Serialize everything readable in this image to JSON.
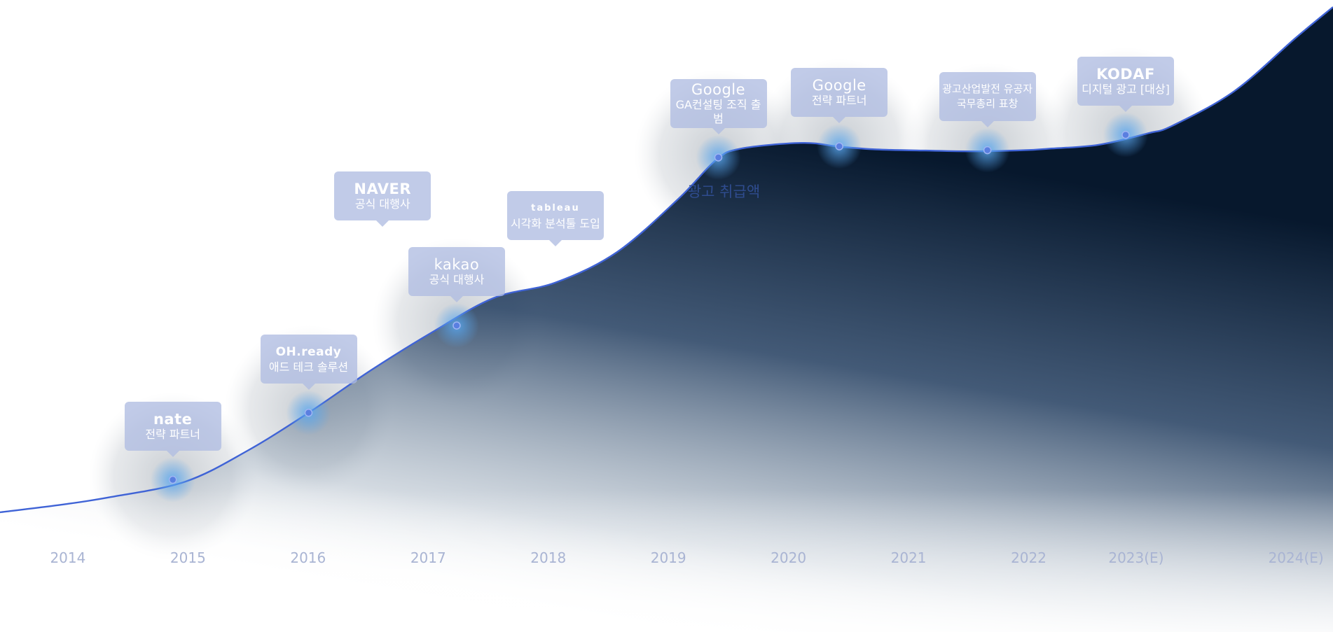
{
  "chart_data": {
    "type": "area",
    "title": "",
    "series": [
      {
        "name": "광고 취급액",
        "x": [
          2013.5,
          2014.0,
          2014.4,
          2015.0,
          2015.5,
          2016.0,
          2016.5,
          2017.0,
          2017.5,
          2018.0,
          2018.5,
          2019.0,
          2019.3,
          2019.5,
          2020.0,
          2020.3,
          2020.6,
          2021.0,
          2021.4,
          2021.8,
          2022.0,
          2022.4,
          2022.8,
          2023.0,
          2023.5,
          2024.0,
          2024.3
        ],
        "values": [
          0,
          2,
          4,
          8,
          16,
          26,
          37,
          47,
          56,
          60,
          68,
          82,
          92,
          95,
          96.5,
          95.5,
          94.8,
          94.5,
          94.3,
          94.6,
          95,
          96,
          99,
          101,
          110,
          124,
          132
        ]
      }
    ],
    "categories": [
      "2014",
      "2015",
      "2016",
      "2017",
      "2018",
      "2019",
      "2020",
      "2021",
      "2022",
      "2023(E)",
      "2024(E)"
    ],
    "xlim": [
      2013.5,
      2024.3
    ],
    "ylim": [
      0,
      132
    ],
    "grid": false,
    "legend": "none",
    "milestones": [
      {
        "x": 2014.9,
        "value": 8.5,
        "logo": "nate",
        "label": "전략 파트너"
      },
      {
        "x": 2016.0,
        "value": 26,
        "logo": "OH.ready",
        "label": "애드 테크 솔루션"
      },
      {
        "x": 2016.6,
        "logo": "NAVER",
        "label": "공식 대행사"
      },
      {
        "x": 2017.2,
        "value": 48.8,
        "logo": "kakao",
        "label": "공식 대행사"
      },
      {
        "x": 2018.0,
        "logo": "tableau",
        "label": "시각화 분석툴 도입"
      },
      {
        "x": 2019.32,
        "value": 92.7,
        "logo": "Google",
        "label": "GA컨설팅 조직 출범"
      },
      {
        "x": 2020.3,
        "value": 95.6,
        "logo": "Google",
        "label": "전략 파트너"
      },
      {
        "x": 2021.5,
        "value": 94.6,
        "logo": "",
        "label": "광고산업발전 유공자 국무총리 표창"
      },
      {
        "x": 2022.62,
        "value": 98.6,
        "logo": "KODAF",
        "label": "디지털 광고 [대상]"
      }
    ],
    "highlight_color": "#5aa8f0",
    "line_color": "#3f63d6",
    "fill_color": "#07182d"
  }
}
